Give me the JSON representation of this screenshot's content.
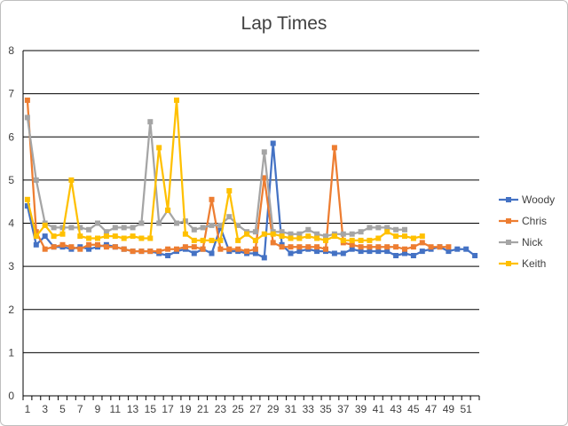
{
  "chart_data": {
    "type": "line",
    "title": "Lap Times",
    "xlabel": "",
    "ylabel": "",
    "ylim": [
      0,
      8
    ],
    "yticks": [
      0,
      1,
      2,
      3,
      4,
      5,
      6,
      7,
      8
    ],
    "xlim": [
      1,
      52
    ],
    "xtick_labels": [
      "1",
      "3",
      "5",
      "7",
      "9",
      "11",
      "13",
      "15",
      "17",
      "19",
      "21",
      "23",
      "25",
      "27",
      "29",
      "31",
      "33",
      "35",
      "37",
      "39",
      "41",
      "43",
      "45",
      "47",
      "49",
      "51"
    ],
    "grid": "horizontal",
    "legend_position": "right",
    "series": [
      {
        "name": "Woody",
        "color": "#4472C4",
        "values": [
          4.4,
          3.5,
          3.7,
          3.45,
          3.45,
          3.4,
          3.45,
          3.4,
          3.45,
          3.5,
          3.45,
          3.4,
          3.35,
          3.35,
          3.35,
          3.3,
          3.25,
          3.35,
          3.4,
          3.3,
          3.4,
          3.3,
          3.9,
          3.35,
          3.35,
          3.3,
          3.3,
          3.2,
          5.85,
          3.5,
          3.3,
          3.35,
          3.4,
          3.35,
          3.35,
          3.3,
          3.3,
          3.4,
          3.35,
          3.35,
          3.35,
          3.35,
          3.25,
          3.3,
          3.25,
          3.35,
          3.4,
          3.45,
          3.35,
          3.4,
          3.4,
          3.25
        ]
      },
      {
        "name": "Chris",
        "color": "#ED7D31",
        "values": [
          6.85,
          3.8,
          3.4,
          3.45,
          3.5,
          3.45,
          3.4,
          3.5,
          3.5,
          3.45,
          3.45,
          3.4,
          3.35,
          3.35,
          3.35,
          3.35,
          3.4,
          3.4,
          3.45,
          3.45,
          3.4,
          4.55,
          3.4,
          3.4,
          3.4,
          3.35,
          3.4,
          5.05,
          3.55,
          3.45,
          3.45,
          3.45,
          3.45,
          3.45,
          3.4,
          5.75,
          3.55,
          3.5,
          3.45,
          3.45,
          3.45,
          3.45,
          3.45,
          3.4,
          3.45,
          3.55,
          3.45,
          3.45,
          3.45
        ]
      },
      {
        "name": "Nick",
        "color": "#A5A5A5",
        "values": [
          6.45,
          5.0,
          4.0,
          3.9,
          3.9,
          3.9,
          3.9,
          3.85,
          4.0,
          3.8,
          3.9,
          3.9,
          3.9,
          4.0,
          6.35,
          4.0,
          4.3,
          4.0,
          4.05,
          3.85,
          3.9,
          3.95,
          3.95,
          4.15,
          3.95,
          3.8,
          3.8,
          5.65,
          3.8,
          3.8,
          3.75,
          3.75,
          3.85,
          3.75,
          3.7,
          3.75,
          3.75,
          3.75,
          3.8,
          3.9,
          3.9,
          3.9,
          3.85,
          3.85
        ]
      },
      {
        "name": "Keith",
        "color": "#FFC000",
        "values": [
          4.55,
          3.7,
          3.95,
          3.7,
          3.75,
          5.0,
          3.7,
          3.65,
          3.65,
          3.7,
          3.7,
          3.65,
          3.7,
          3.65,
          3.65,
          5.75,
          4.3,
          6.85,
          3.75,
          3.6,
          3.6,
          3.6,
          3.6,
          4.75,
          3.6,
          3.75,
          3.6,
          3.75,
          3.75,
          3.7,
          3.65,
          3.65,
          3.7,
          3.65,
          3.6,
          3.7,
          3.6,
          3.6,
          3.6,
          3.6,
          3.65,
          3.8,
          3.7,
          3.7,
          3.65,
          3.7
        ]
      }
    ]
  }
}
